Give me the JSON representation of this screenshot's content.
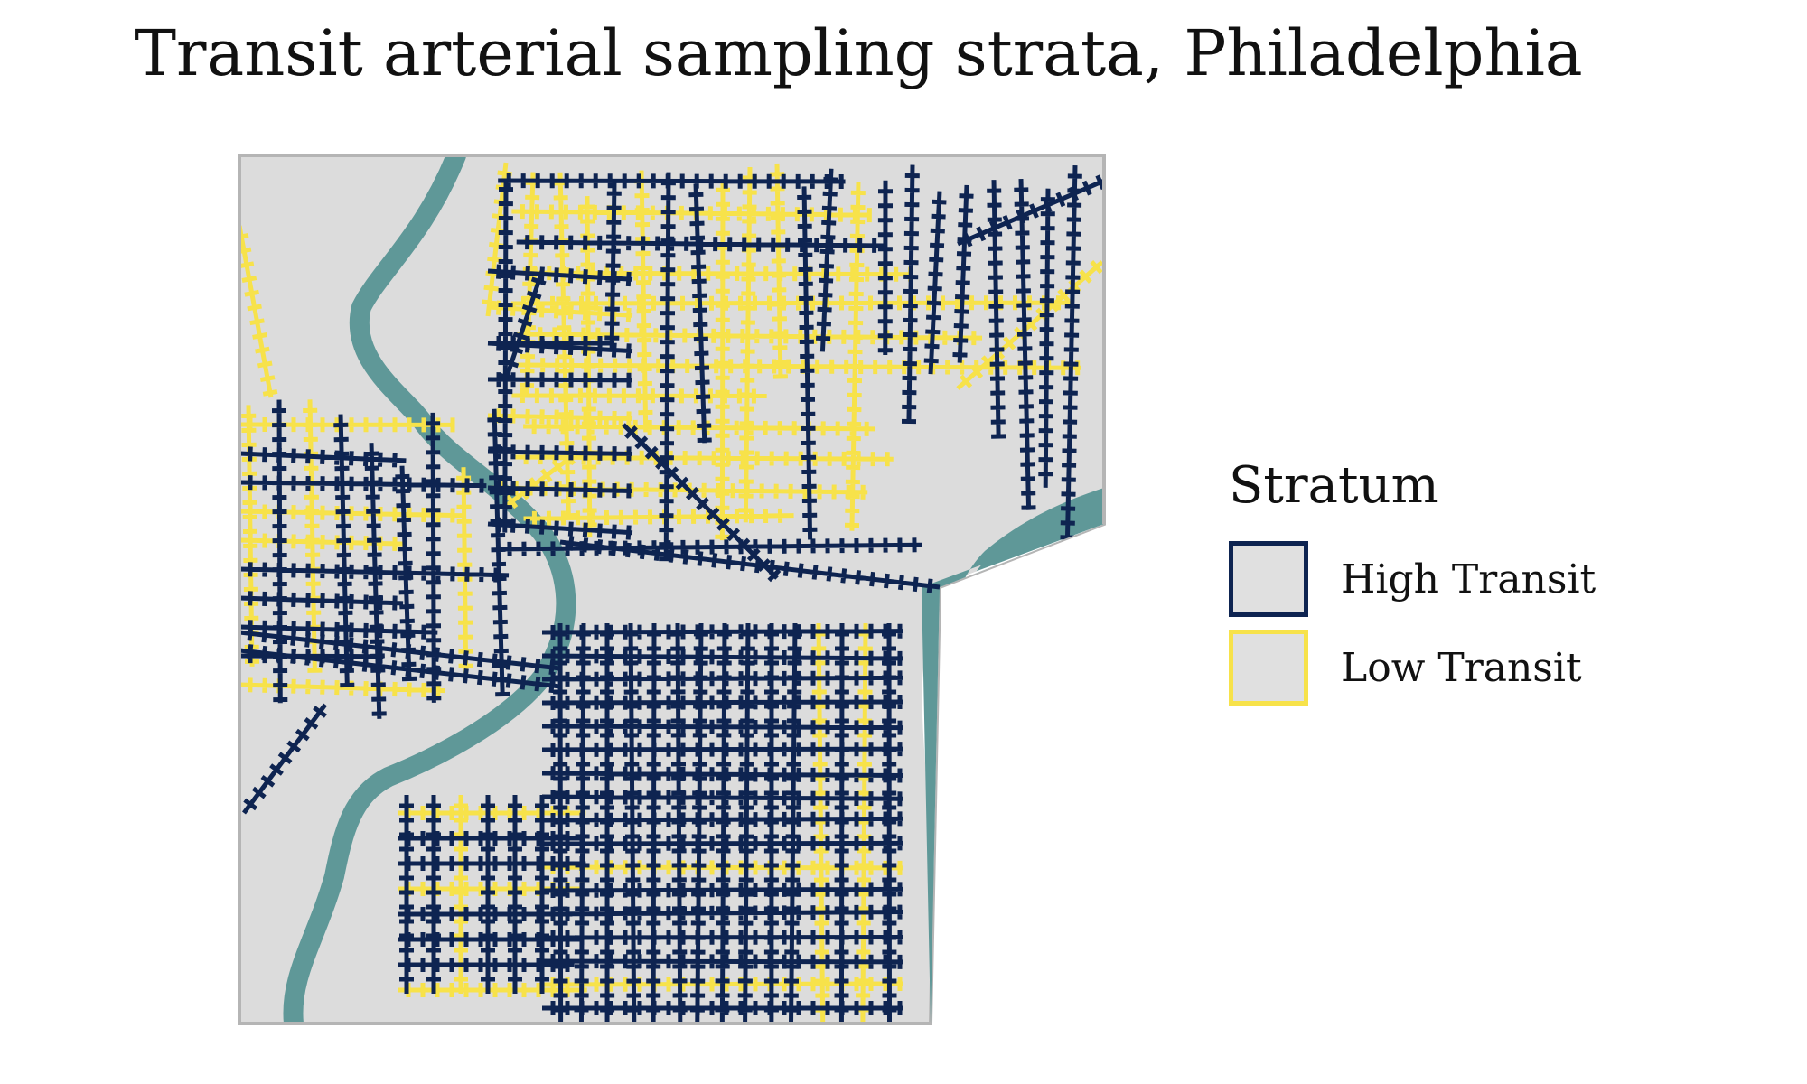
{
  "title": "Transit arterial sampling strata, Philadelphia",
  "legend": {
    "title": "Stratum",
    "items": [
      {
        "label": "High Transit",
        "color": "#0e2451"
      },
      {
        "label": "Low Transit",
        "color": "#f7e24a"
      }
    ]
  },
  "colors": {
    "land": "#dcdcdc",
    "water": "#5f9898",
    "border": "#b5b5b5",
    "high": "#0e2451",
    "low": "#f7e24a",
    "legend_fill": "#e0e0e0"
  }
}
